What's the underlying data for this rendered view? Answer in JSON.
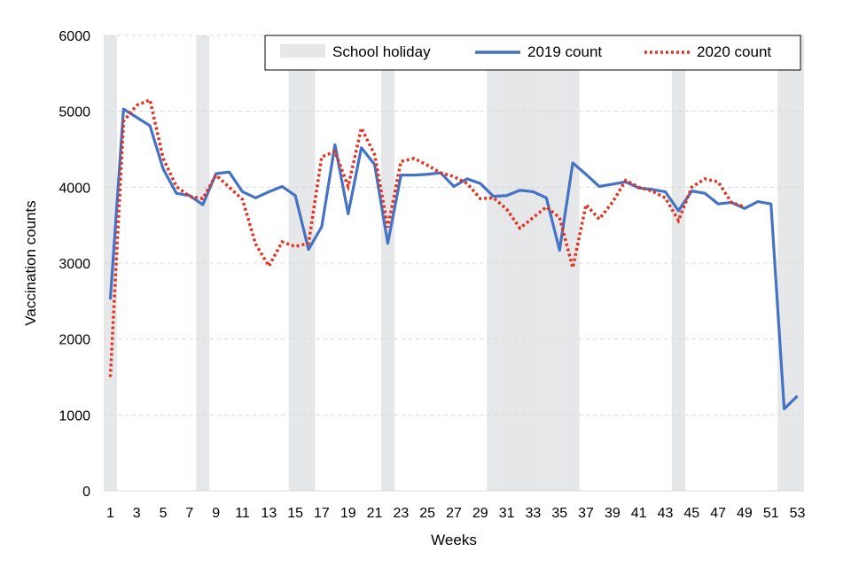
{
  "chart_data": {
    "type": "line",
    "xlabel": "Weeks",
    "ylabel": "Vaccination counts",
    "xlim": [
      1,
      53
    ],
    "ylim": [
      0,
      6000
    ],
    "yticks": [
      0,
      1000,
      2000,
      3000,
      4000,
      5000,
      6000
    ],
    "xticks": [
      1,
      3,
      5,
      7,
      9,
      11,
      13,
      15,
      17,
      19,
      21,
      23,
      25,
      27,
      29,
      31,
      33,
      35,
      37,
      39,
      41,
      43,
      45,
      47,
      49,
      51,
      53
    ],
    "grid": "horizontal dashed",
    "legend_position": "top-right",
    "holiday": {
      "name": "School holiday",
      "color": "#e6e7e8",
      "weeks": [
        1,
        8,
        15,
        16,
        22,
        30,
        31,
        32,
        33,
        34,
        35,
        36,
        44,
        52,
        53
      ]
    },
    "series": [
      {
        "name": "2019 count",
        "color": "#4472c4",
        "style": "solid",
        "x": [
          1,
          2,
          3,
          4,
          5,
          6,
          7,
          8,
          9,
          10,
          11,
          12,
          13,
          14,
          15,
          16,
          17,
          18,
          19,
          20,
          21,
          22,
          23,
          24,
          25,
          26,
          27,
          28,
          29,
          30,
          31,
          32,
          33,
          34,
          35,
          36,
          37,
          38,
          39,
          40,
          41,
          42,
          43,
          44,
          45,
          46,
          47,
          48,
          49,
          50,
          51,
          52,
          53
        ],
        "values": [
          2520,
          5030,
          4920,
          4810,
          4240,
          3920,
          3890,
          3770,
          4180,
          4200,
          3940,
          3860,
          3940,
          4010,
          3890,
          3180,
          3480,
          4560,
          3650,
          4520,
          4300,
          3260,
          4160,
          4160,
          4170,
          4190,
          4010,
          4110,
          4050,
          3880,
          3890,
          3960,
          3940,
          3860,
          3170,
          4320,
          4170,
          4010,
          4040,
          4070,
          3990,
          3970,
          3940,
          3690,
          3950,
          3920,
          3780,
          3800,
          3720,
          3810,
          3780,
          1080,
          1250
        ]
      },
      {
        "name": "2020 count",
        "color": "#e53223",
        "style": "dotted",
        "x": [
          1,
          2,
          3,
          4,
          5,
          6,
          7,
          8,
          9,
          10,
          11,
          12,
          13,
          14,
          15,
          16,
          17,
          18,
          19,
          20,
          21,
          22,
          23,
          24,
          25,
          26,
          27,
          28,
          29,
          30,
          31,
          32,
          33,
          34,
          35,
          36,
          37,
          38,
          39,
          40,
          41,
          42,
          43,
          44,
          45,
          46,
          47,
          48,
          49
        ],
        "values": [
          1500,
          4870,
          5080,
          5150,
          4380,
          4010,
          3880,
          3850,
          4160,
          4000,
          3840,
          3250,
          2960,
          3280,
          3220,
          3260,
          4400,
          4470,
          4010,
          4780,
          4430,
          3470,
          4340,
          4380,
          4290,
          4190,
          4140,
          4050,
          3850,
          3860,
          3710,
          3460,
          3600,
          3740,
          3600,
          2940,
          3770,
          3580,
          3800,
          4090,
          4000,
          3950,
          3860,
          3560,
          4000,
          4110,
          4070,
          3800,
          3740
        ]
      }
    ]
  }
}
